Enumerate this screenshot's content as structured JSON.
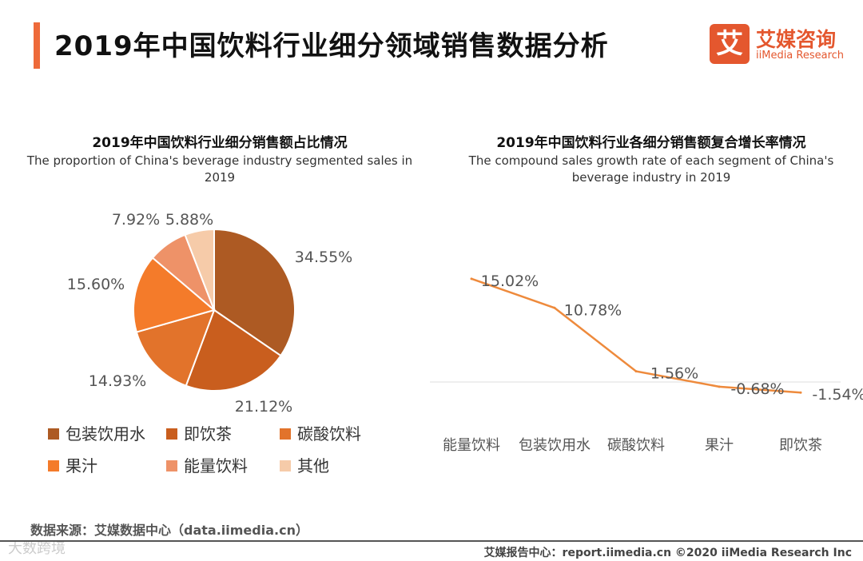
{
  "header": {
    "title": "2019年中国饮料行业细分领域销售数据分析",
    "logo_mark": "艾",
    "logo_cn": "艾媒咨询",
    "logo_en": "iiMedia Research"
  },
  "colors": {
    "accent": "#ee6a3a",
    "line": "#ee8a3c"
  },
  "chart_data": [
    {
      "type": "pie",
      "title": "2019年中国饮料行业细分销售额占比情况",
      "subtitle": "The proportion of China's beverage industry segmented sales in 2019",
      "categories": [
        "包装饮用水",
        "即饮茶",
        "碳酸饮料",
        "果汁",
        "能量饮料",
        "其他"
      ],
      "values": [
        34.55,
        21.12,
        14.93,
        15.6,
        7.92,
        5.88
      ],
      "labels": [
        "34.55%",
        "21.12%",
        "14.93%",
        "15.60%",
        "7.92%",
        "5.88%"
      ],
      "colors": [
        "#ad5a23",
        "#c95e1e",
        "#e2732b",
        "#f47b2a",
        "#ee9268",
        "#f6cba9"
      ]
    },
    {
      "type": "line",
      "title": "2019年中国饮料行业各细分销售额复合增长率情况",
      "subtitle": "The compound sales growth rate of each segment of China's beverage industry in 2019",
      "categories": [
        "能量饮料",
        "包装饮用水",
        "碳酸饮料",
        "果汁",
        "即饮茶"
      ],
      "values": [
        15.02,
        10.78,
        1.56,
        -0.68,
        -1.54
      ],
      "labels": [
        "15.02%",
        "10.78%",
        "1.56%",
        "-0.68%",
        "-1.54%"
      ]
    }
  ],
  "source": "数据来源：艾媒数据中心（data.iimedia.cn）",
  "footer": "艾媒报告中心：report.iimedia.cn   ©2020  iiMedia Research  Inc",
  "watermark": "大数跨境"
}
